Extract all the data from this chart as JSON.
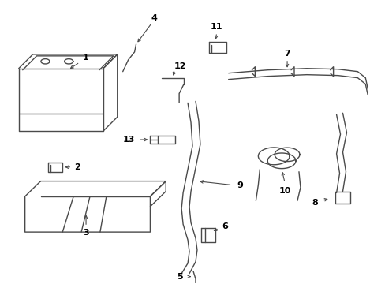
{
  "background": "#ffffff",
  "line_color": "#4a4a4a",
  "label_color": "#000000",
  "figsize": [
    4.89,
    3.6
  ],
  "dpi": 100
}
